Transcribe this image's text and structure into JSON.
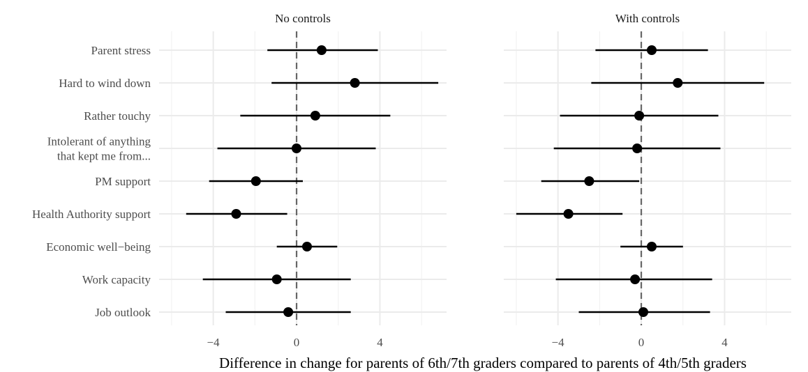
{
  "chart_data": {
    "type": "scatter",
    "subtype": "dot-and-whisker",
    "xlabel": "Difference in change for parents of 6th/7th graders compared to parents of 4th/5th graders",
    "xticks": [
      -4,
      0,
      4
    ],
    "xtick_labels": [
      "−4",
      "0",
      "4"
    ],
    "xlim": [
      -6.6,
      7.2
    ],
    "reference_line": 0,
    "grid": true,
    "categories": [
      [
        "Parent stress"
      ],
      [
        "Hard to wind down"
      ],
      [
        "Rather touchy"
      ],
      [
        "Intolerant of anything",
        "that kept me from..."
      ],
      [
        "PM support"
      ],
      [
        "Health Authority support"
      ],
      [
        "Economic well−being"
      ],
      [
        "Work capacity"
      ],
      [
        "Job outlook"
      ]
    ],
    "panels": [
      {
        "title": "No controls",
        "estimates": [
          1.2,
          2.8,
          0.9,
          0.0,
          -1.95,
          -2.9,
          0.5,
          -0.95,
          -0.4
        ],
        "ci_low": [
          -1.4,
          -1.2,
          -2.7,
          -3.8,
          -4.2,
          -5.3,
          -0.95,
          -4.5,
          -3.4
        ],
        "ci_high": [
          3.9,
          6.8,
          4.5,
          3.8,
          0.3,
          -0.45,
          1.95,
          2.6,
          2.6
        ]
      },
      {
        "title": "With controls",
        "estimates": [
          0.5,
          1.75,
          -0.1,
          -0.2,
          -2.5,
          -3.5,
          0.5,
          -0.3,
          0.1
        ],
        "ci_low": [
          -2.2,
          -2.4,
          -3.9,
          -4.2,
          -4.8,
          -6.0,
          -1.0,
          -4.1,
          -3.0
        ],
        "ci_high": [
          3.2,
          5.9,
          3.7,
          3.8,
          -0.1,
          -0.9,
          2.0,
          3.4,
          3.3
        ]
      }
    ]
  }
}
